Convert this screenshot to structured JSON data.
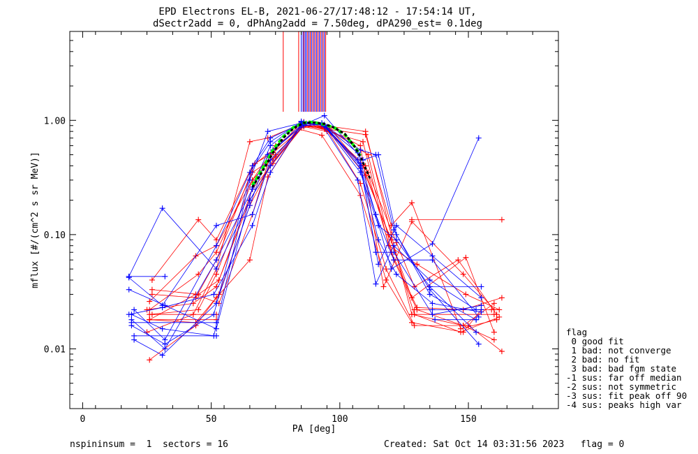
{
  "chart_data": {
    "type": "line",
    "title": "EPD Electrons EL-B, 2021-06-27/17:48:12 - 17:54:14 UT,",
    "subtitle": "dSectr2add = 0, dPhAng2add = 7.50deg, dPA290_est=   0.1deg",
    "xlabel": "PA [deg]",
    "ylabel": "mflux [#/(cm^2 s sr MeV)]",
    "xlim": [
      -5,
      185
    ],
    "ylim": [
      0.003,
      6.0
    ],
    "yscale": "log",
    "x_ticks": [
      0,
      50,
      100,
      150
    ],
    "y_ticks": [
      {
        "value": 1.0,
        "label": "1.00"
      },
      {
        "value": 0.1,
        "label": "0.10"
      },
      {
        "value": 0.01,
        "label": "0.01"
      }
    ],
    "colors": {
      "red": "#ff0000",
      "blue": "#0000ff",
      "fit": "#00ff00",
      "median": "#000000"
    },
    "series": [
      {
        "color": "red",
        "x": [
          26,
          44,
          52,
          65,
          72,
          84,
          93,
          108,
          118,
          128,
          148,
          155
        ],
        "y": [
          0.008,
          0.016,
          0.028,
          0.06,
          0.32,
          0.84,
          0.74,
          0.22,
          0.04,
          0.017,
          0.014,
          0.022
        ]
      },
      {
        "color": "red",
        "x": [
          27,
          45,
          53,
          66,
          74,
          86,
          95,
          110,
          120,
          129,
          147,
          162
        ],
        "y": [
          0.033,
          0.03,
          0.04,
          0.25,
          0.42,
          0.9,
          0.86,
          0.33,
          0.09,
          0.02,
          0.014,
          0.019
        ]
      },
      {
        "color": "red",
        "x": [
          26,
          44,
          52,
          66,
          75,
          87,
          94,
          109,
          119,
          128,
          149,
          160
        ],
        "y": [
          0.026,
          0.065,
          0.08,
          0.3,
          0.5,
          0.94,
          0.85,
          0.4,
          0.1,
          0.028,
          0.063,
          0.014
        ]
      },
      {
        "color": "red",
        "x": [
          27,
          45,
          52,
          66,
          74,
          86,
          96,
          111,
          121,
          130,
          148,
          160
        ],
        "y": [
          0.04,
          0.135,
          0.09,
          0.4,
          0.55,
          0.92,
          0.82,
          0.5,
          0.06,
          0.022,
          0.016,
          0.025
        ]
      },
      {
        "color": "red",
        "x": [
          26,
          44,
          53,
          65,
          73,
          85,
          94,
          108,
          118,
          129,
          150,
          163
        ],
        "y": [
          0.018,
          0.017,
          0.03,
          0.18,
          0.4,
          0.86,
          0.9,
          0.28,
          0.05,
          0.016,
          0.016,
          0.0095
        ]
      },
      {
        "color": "red",
        "x": [
          25,
          43,
          52,
          65,
          72,
          85,
          95,
          110,
          120,
          128,
          147,
          161
        ],
        "y": [
          0.014,
          0.02,
          0.05,
          0.65,
          0.7,
          0.93,
          0.84,
          0.75,
          0.12,
          0.19,
          0.015,
          0.018
        ]
      },
      {
        "color": "red",
        "x": [
          26,
          45,
          52,
          66,
          75,
          86,
          93,
          108,
          117,
          128,
          148,
          160
        ],
        "y": [
          0.022,
          0.045,
          0.07,
          0.35,
          0.48,
          0.97,
          0.88,
          0.6,
          0.035,
          0.13,
          0.045,
          0.022
        ]
      },
      {
        "color": "red",
        "x": [
          27,
          44,
          52,
          67,
          74,
          86,
          95,
          109,
          119,
          130,
          149,
          162
        ],
        "y": [
          0.03,
          0.028,
          0.06,
          0.42,
          0.52,
          0.88,
          0.8,
          0.65,
          0.08,
          0.055,
          0.03,
          0.022
        ]
      },
      {
        "color": "red",
        "x": [
          26,
          44,
          53,
          66,
          73,
          85,
          94,
          110,
          120,
          128,
          148,
          160
        ],
        "y": [
          0.018,
          0.03,
          0.025,
          0.15,
          0.5,
          0.95,
          0.9,
          0.8,
          0.1,
          0.02,
          0.016,
          0.012
        ]
      },
      {
        "color": "red",
        "x": [
          25,
          43,
          52,
          65,
          74,
          85,
          96,
          111,
          122,
          129,
          146,
          161
        ],
        "y": [
          0.022,
          0.025,
          0.035,
          0.2,
          0.45,
          0.9,
          0.85,
          0.35,
          0.085,
          0.035,
          0.06,
          0.02
        ]
      },
      {
        "color": "red",
        "x": [
          26,
          45,
          52,
          66,
          75,
          86,
          95,
          110,
          120,
          130,
          148,
          163
        ],
        "y": [
          0.02,
          0.022,
          0.045,
          0.3,
          0.6,
          0.9,
          0.82,
          0.4,
          0.07,
          0.023,
          0.022,
          0.028
        ]
      },
      {
        "color": "red",
        "x": [
          128,
          163
        ],
        "y": [
          0.135,
          0.135
        ]
      },
      {
        "color": "red",
        "x": [
          129,
          159
        ],
        "y": [
          0.022,
          0.022
        ]
      },
      {
        "color": "red",
        "x": [
          128,
          160
        ],
        "y": [
          0.02,
          0.02
        ]
      },
      {
        "color": "red",
        "x": [
          26,
          52
        ],
        "y": [
          0.018,
          0.018
        ]
      },
      {
        "color": "red",
        "x": [
          27,
          52
        ],
        "y": [
          0.02,
          0.02
        ]
      },
      {
        "color": "blue",
        "x": [
          18,
          31,
          52,
          65,
          73,
          85,
          93,
          107,
          114,
          120,
          136,
          154
        ],
        "y": [
          0.043,
          0.17,
          0.05,
          0.2,
          0.4,
          0.9,
          0.92,
          0.45,
          0.15,
          0.05,
          0.083,
          0.7
        ]
      },
      {
        "color": "blue",
        "x": [
          18,
          32,
          52,
          66,
          73,
          85,
          93,
          108,
          114,
          121,
          135,
          153
        ],
        "y": [
          0.033,
          0.024,
          0.015,
          0.26,
          0.6,
          0.98,
          0.94,
          0.55,
          0.5,
          0.11,
          0.03,
          0.018
        ]
      },
      {
        "color": "blue",
        "x": [
          19,
          31,
          51,
          65,
          72,
          86,
          94,
          108,
          115,
          122,
          136,
          155
        ],
        "y": [
          0.02,
          0.015,
          0.013,
          0.3,
          0.8,
          0.96,
          0.9,
          0.4,
          0.055,
          0.12,
          0.065,
          0.028
        ]
      },
      {
        "color": "blue",
        "x": [
          19,
          32,
          51,
          66,
          73,
          85,
          93,
          107,
          114,
          121,
          135,
          153
        ],
        "y": [
          0.016,
          0.011,
          0.02,
          0.4,
          0.7,
          0.94,
          0.92,
          0.3,
          0.037,
          0.08,
          0.04,
          0.022
        ]
      },
      {
        "color": "blue",
        "x": [
          20,
          31,
          52,
          65,
          72,
          86,
          94,
          109,
          115,
          122,
          135,
          154
        ],
        "y": [
          0.012,
          0.0088,
          0.025,
          0.18,
          0.5,
          0.92,
          1.1,
          0.45,
          0.5,
          0.1,
          0.033,
          0.011
        ]
      },
      {
        "color": "blue",
        "x": [
          18,
          31,
          51,
          66,
          73,
          85,
          93,
          108,
          114,
          121,
          136,
          155
        ],
        "y": [
          0.02,
          0.023,
          0.03,
          0.12,
          0.35,
          0.92,
          0.95,
          0.42,
          0.07,
          0.07,
          0.02,
          0.024
        ]
      },
      {
        "color": "blue",
        "x": [
          19,
          32,
          52,
          66,
          74,
          86,
          94,
          108,
          115,
          122,
          135,
          153
        ],
        "y": [
          0.018,
          0.01,
          0.06,
          0.25,
          0.55,
          0.95,
          0.9,
          0.35,
          0.12,
          0.09,
          0.035,
          0.014
        ]
      },
      {
        "color": "blue",
        "x": [
          20,
          32,
          52,
          65,
          73,
          85,
          93,
          107,
          114,
          121,
          136,
          154
        ],
        "y": [
          0.022,
          0.012,
          0.08,
          0.35,
          0.65,
          0.97,
          0.93,
          0.52,
          0.15,
          0.06,
          0.06,
          0.019
        ]
      },
      {
        "color": "blue",
        "x": [
          18,
          31,
          52,
          66,
          73,
          86,
          94,
          108,
          115,
          122,
          136,
          155
        ],
        "y": [
          0.042,
          0.024,
          0.12,
          0.15,
          0.45,
          0.9,
          0.92,
          0.38,
          0.09,
          0.045,
          0.025,
          0.021
        ]
      },
      {
        "color": "blue",
        "x": [
          18,
          32
        ],
        "y": [
          0.043,
          0.043
        ]
      },
      {
        "color": "blue",
        "x": [
          19,
          52
        ],
        "y": [
          0.017,
          0.017
        ]
      },
      {
        "color": "blue",
        "x": [
          20,
          52
        ],
        "y": [
          0.013,
          0.013
        ]
      },
      {
        "color": "blue",
        "x": [
          136,
          155
        ],
        "y": [
          0.022,
          0.022
        ]
      },
      {
        "color": "blue",
        "x": [
          135,
          155
        ],
        "y": [
          0.035,
          0.035
        ]
      },
      {
        "color": "blue",
        "x": [
          137,
          153
        ],
        "y": [
          0.018,
          0.018
        ]
      }
    ],
    "fit_curve": {
      "color": "fit",
      "x": [
        66,
        70,
        74,
        78,
        82,
        86,
        88,
        90,
        92,
        94,
        98,
        102,
        106,
        108
      ],
      "y": [
        0.27,
        0.38,
        0.55,
        0.72,
        0.87,
        0.95,
        0.97,
        0.96,
        0.94,
        0.92,
        0.86,
        0.75,
        0.58,
        0.49
      ]
    },
    "median_curve": {
      "color": "median",
      "x": [
        66,
        70,
        74,
        78,
        82,
        86,
        90,
        94,
        98,
        102,
        106,
        108,
        110,
        112
      ],
      "y": [
        0.26,
        0.36,
        0.52,
        0.7,
        0.85,
        0.95,
        0.96,
        0.93,
        0.86,
        0.76,
        0.58,
        0.48,
        0.38,
        0.3
      ]
    },
    "vertical_lines": [
      {
        "color": "red",
        "x": [
          78,
          84,
          86,
          87.5,
          88.5,
          89.5,
          90.5,
          91.5,
          92.5,
          93.5,
          94.5
        ]
      },
      {
        "color": "blue",
        "x": [
          85,
          85.7,
          86.5,
          87,
          88,
          89,
          90,
          91,
          92,
          93,
          94
        ]
      }
    ]
  },
  "legend": {
    "title": "flag",
    "items": [
      " 0 good fit",
      " 1 bad: not converge",
      " 2 bad: no fit",
      " 3 bad: bad fgm state",
      "-1 sus: far off median",
      "-2 sus: not symmetric",
      "-3 sus: fit peak off 90",
      "-4 sus: peaks high var"
    ]
  },
  "footer": {
    "left": "nspininsum =  1  sectors = 16",
    "right": "Created: Sat Oct 14 03:31:56 2023   flag = 0"
  }
}
